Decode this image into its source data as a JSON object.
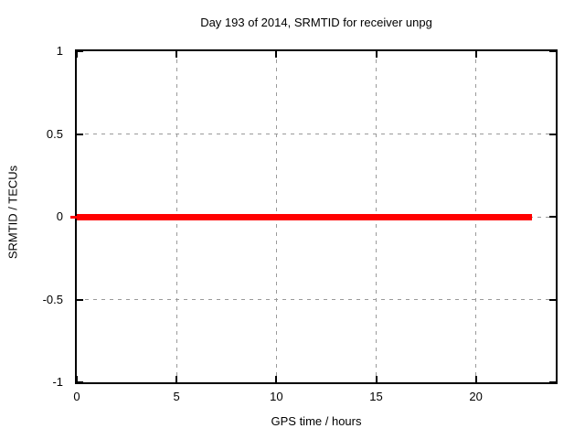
{
  "window": {
    "background": "#ffffff"
  },
  "chart_data": {
    "type": "line",
    "title": "Day 193 of 2014, SRMTID for receiver unpg",
    "xlabel": "GPS time / hours",
    "ylabel": "SRMTID / TECUs",
    "xlim": [
      0,
      24
    ],
    "ylim": [
      -1,
      1
    ],
    "xticks": [
      0,
      5,
      10,
      15,
      20
    ],
    "yticks": [
      1,
      0.5,
      0,
      -0.5,
      -1
    ],
    "grid": true,
    "grid_style": "dotted",
    "grid_color": "#9a9a9a",
    "axis_color": "#000000",
    "text_color": "#000000",
    "legend": "none",
    "series": [
      {
        "name": "SRMTID",
        "color": "#ff0000",
        "linewidth": 7,
        "x": [
          0,
          22.8
        ],
        "y": [
          0,
          0
        ]
      }
    ]
  }
}
